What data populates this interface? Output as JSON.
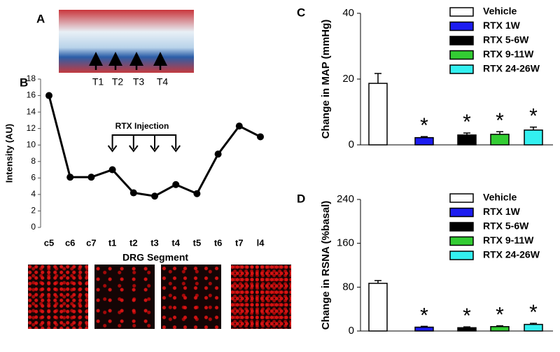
{
  "figure_a": {
    "label": "A",
    "markers": [
      "T1",
      "T2",
      "T3",
      "T4"
    ]
  },
  "chart_data": [
    {
      "type": "line",
      "label": "B",
      "x_label": "DRG Segment",
      "y_label": "Intensity (AU)",
      "annotation": "RTX Injection",
      "categories": [
        "c5",
        "c6",
        "c7",
        "t1",
        "t2",
        "t3",
        "t4",
        "t5",
        "t6",
        "t7",
        "l4"
      ],
      "values": [
        16.0,
        6.1,
        6.1,
        7.0,
        4.2,
        3.8,
        5.2,
        4.1,
        8.9,
        12.3,
        11.0
      ],
      "color": "#000000",
      "ylim": [
        0,
        18
      ],
      "yticks": [
        0,
        2,
        4,
        6,
        8,
        10,
        12,
        14,
        16,
        18
      ]
    },
    {
      "type": "bar",
      "label": "C",
      "y_label": "Change in MAP (mmHg)",
      "categories": [
        "Vehicle",
        "RTX 1W",
        "RTX 5-6W",
        "RTX 9-11W",
        "RTX 24-26W"
      ],
      "colors": [
        "#ffffff",
        "#1c1cf0",
        "#000000",
        "#33cc33",
        "#33f0f0"
      ],
      "values": [
        18.7,
        2.2,
        3.0,
        3.2,
        4.5
      ],
      "errors": [
        3.0,
        0.3,
        0.6,
        0.8,
        0.9
      ],
      "markers": [
        null,
        "*",
        "*",
        "*",
        "*"
      ],
      "ylim": [
        0,
        40
      ],
      "yticks": [
        0,
        20,
        40
      ]
    },
    {
      "type": "bar",
      "label": "D",
      "y_label": "Change in RSNA (%basal)",
      "categories": [
        "Vehicle",
        "RTX 1W",
        "RTX 5-6W",
        "RTX 9-11W",
        "RTX 24-26W"
      ],
      "colors": [
        "#ffffff",
        "#1c1cf0",
        "#000000",
        "#33cc33",
        "#33f0f0"
      ],
      "values": [
        87,
        7,
        6,
        8,
        12
      ],
      "errors": [
        5,
        1.5,
        1.5,
        1.5,
        2
      ],
      "markers": [
        null,
        "*",
        "*",
        "*",
        "*"
      ],
      "ylim": [
        0,
        240
      ],
      "yticks": [
        0,
        80,
        160,
        240
      ]
    }
  ]
}
